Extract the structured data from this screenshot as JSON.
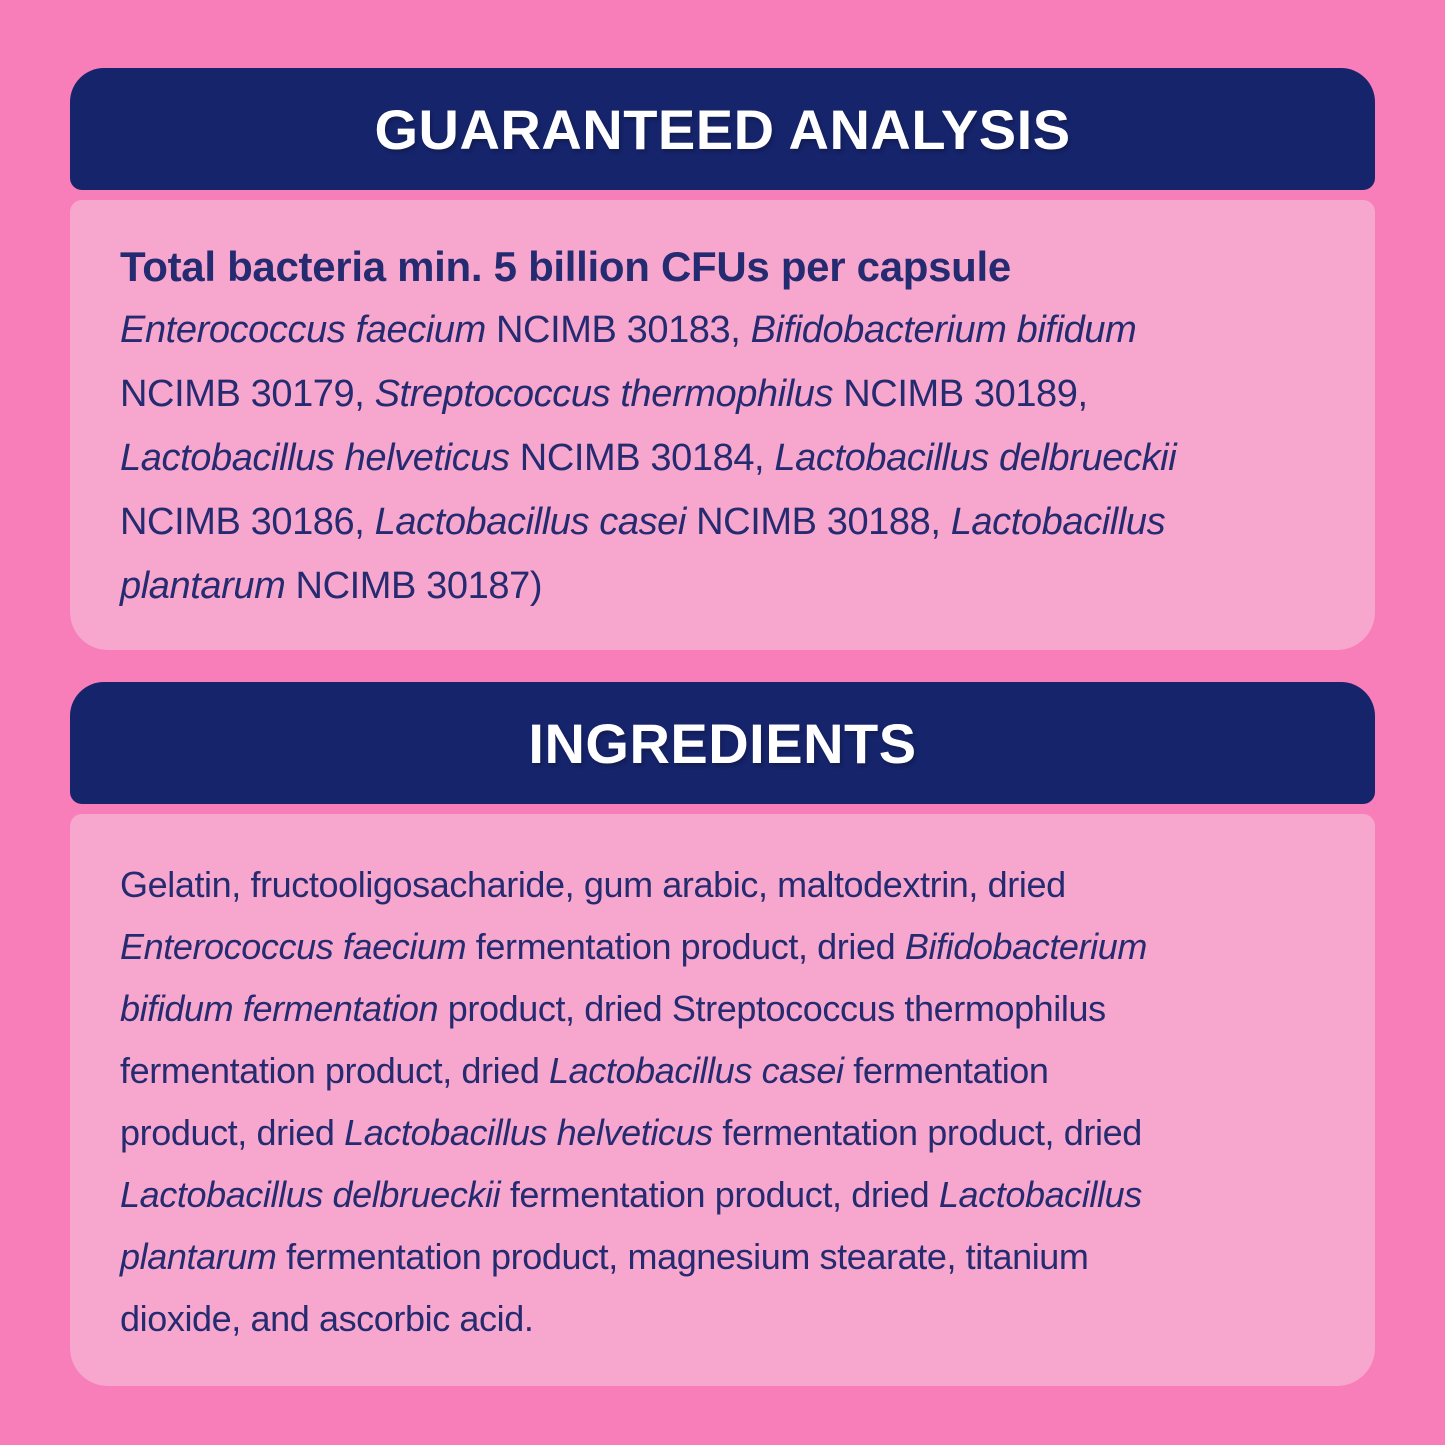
{
  "colors": {
    "background_pink": "#F87EBA",
    "card_body_pink": "#F7A6CD",
    "header_navy": "#16246C",
    "header_text": "#FFFFFF",
    "body_text_navy": "#252B70"
  },
  "guaranteed_analysis": {
    "title": "GUARANTEED ANALYSIS",
    "lead": "Total bacteria min. 5 billion CFUs per capsule",
    "lines": [
      [
        {
          "t": "Enterococcus faecium",
          "i": true
        },
        {
          "t": " NCIMB 30183, "
        },
        {
          "t": "Bifidobacterium bifidum",
          "i": true
        }
      ],
      [
        {
          "t": "NCIMB 30179, "
        },
        {
          "t": "Streptococcus thermophilus",
          "i": true
        },
        {
          "t": " NCIMB 30189,"
        }
      ],
      [
        {
          "t": "Lactobacillus helveticus",
          "i": true
        },
        {
          "t": " NCIMB 30184, "
        },
        {
          "t": "Lactobacillus delbrueckii",
          "i": true
        }
      ],
      [
        {
          "t": "NCIMB 30186, "
        },
        {
          "t": "Lactobacillus casei",
          "i": true
        },
        {
          "t": " NCIMB 30188, "
        },
        {
          "t": "Lactobacillus",
          "i": true
        }
      ],
      [
        {
          "t": "plantarum",
          "i": true
        },
        {
          "t": " NCIMB 30187)"
        }
      ]
    ]
  },
  "ingredients": {
    "title": "INGREDIENTS",
    "lines": [
      [
        {
          "t": "Gelatin, fructooligosacharide, gum arabic, maltodextrin, dried"
        }
      ],
      [
        {
          "t": "Enterococcus faecium",
          "i": true
        },
        {
          "t": " fermentation product, dried "
        },
        {
          "t": "Bifidobacterium",
          "i": true
        }
      ],
      [
        {
          "t": "bifidum fermentation",
          "i": true
        },
        {
          "t": " product, dried Streptococcus thermophilus"
        }
      ],
      [
        {
          "t": "fermentation product, dried "
        },
        {
          "t": "Lactobacillus casei",
          "i": true
        },
        {
          "t": " fermentation"
        }
      ],
      [
        {
          "t": "product, dried "
        },
        {
          "t": "Lactobacillus helveticus",
          "i": true
        },
        {
          "t": " fermentation product, dried"
        }
      ],
      [
        {
          "t": "Lactobacillus delbrueckii",
          "i": true
        },
        {
          "t": " fermentation product, dried "
        },
        {
          "t": "Lactobacillus",
          "i": true
        }
      ],
      [
        {
          "t": "plantarum",
          "i": true
        },
        {
          "t": " fermentation product, magnesium stearate, titanium"
        }
      ],
      [
        {
          "t": "dioxide, and ascorbic acid."
        }
      ]
    ]
  }
}
